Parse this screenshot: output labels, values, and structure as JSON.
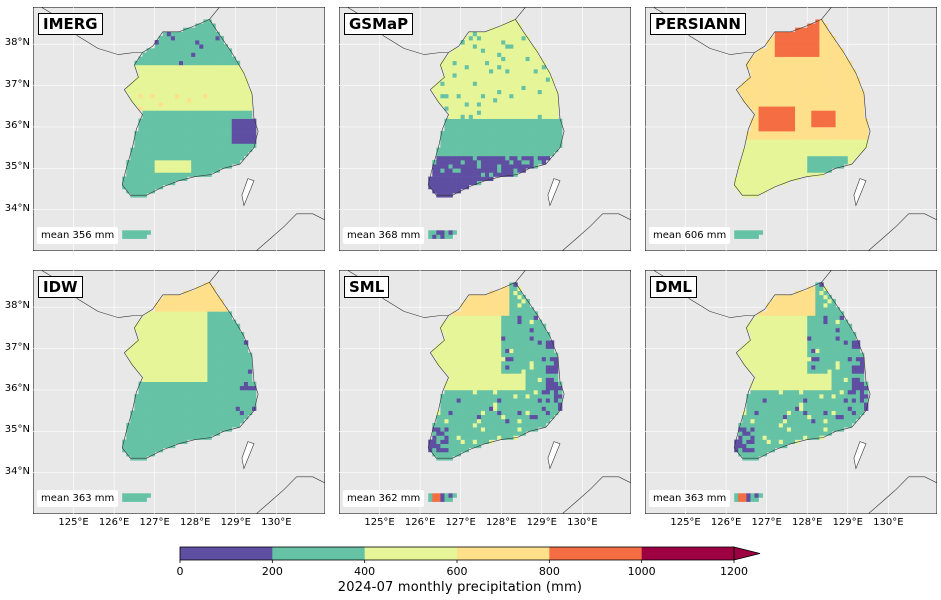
{
  "panels": [
    {
      "title": "IMERG",
      "mean": "mean 356 mm",
      "pattern": "imerg"
    },
    {
      "title": "GSMaP",
      "mean": "mean 368 mm",
      "pattern": "gsmap"
    },
    {
      "title": "PERSIANN",
      "mean": "mean 606 mm",
      "pattern": "persiann"
    },
    {
      "title": "IDW",
      "mean": "mean 363 mm",
      "pattern": "idw"
    },
    {
      "title": "SML",
      "mean": "mean 362 mm",
      "pattern": "sml"
    },
    {
      "title": "DML",
      "mean": "mean 363 mm",
      "pattern": "dml"
    }
  ],
  "lat_ticks": [
    "38°N",
    "37°N",
    "36°N",
    "35°N",
    "34°N"
  ],
  "lon_ticks": [
    "125°E",
    "126°E",
    "127°E",
    "128°E",
    "129°E",
    "130°E"
  ],
  "colorbar": {
    "label": "2024-07 monthly precipitation (mm)",
    "ticks": [
      "0",
      "200",
      "400",
      "600",
      "800",
      "1000",
      "1200"
    ],
    "bins": [
      {
        "from": 0,
        "to": 200,
        "color": "#5e4fa2"
      },
      {
        "from": 200,
        "to": 400,
        "color": "#66c2a5"
      },
      {
        "from": 400,
        "to": 600,
        "color": "#e6f598"
      },
      {
        "from": 600,
        "to": 800,
        "color": "#fee08b"
      },
      {
        "from": 800,
        "to": 1000,
        "color": "#f46d43"
      },
      {
        "from": 1000,
        "to": 1200,
        "color": "#9e0142"
      }
    ],
    "extend": "max"
  },
  "colors": {
    "ocean": "#e8e8e8",
    "coast": "#333333",
    "grid": "#ffffff"
  }
}
